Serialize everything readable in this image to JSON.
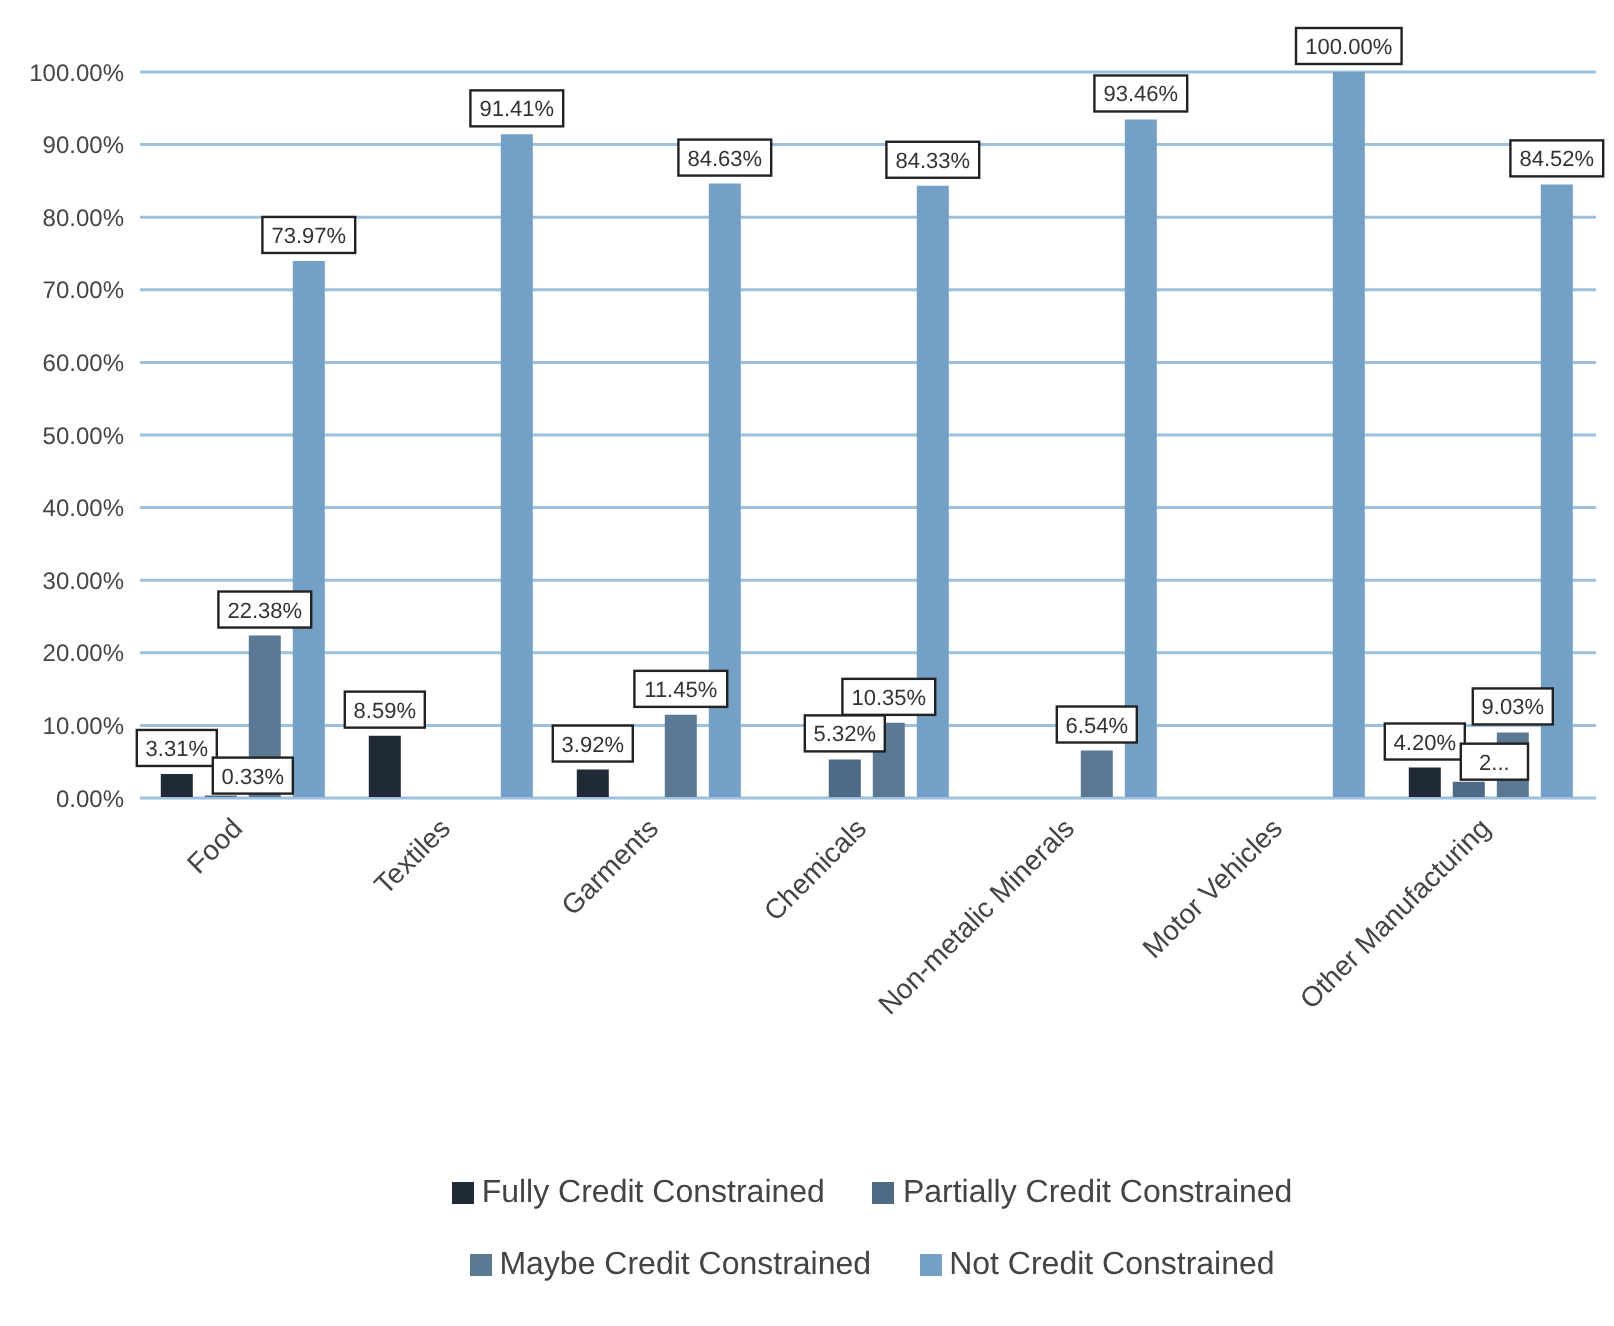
{
  "chart_data": {
    "type": "bar",
    "categories": [
      "Food",
      "Textiles",
      "Garments",
      "Chemicals",
      "Non-metalic Minerals",
      "Motor Vehicles",
      "Other Manufacturing"
    ],
    "series": [
      {
        "name": "Fully Credit Constrained",
        "color": "#1f2a36",
        "values": [
          3.31,
          8.59,
          3.92,
          null,
          null,
          null,
          4.2
        ],
        "value_labels": [
          "3.31%",
          "8.59%",
          "3.92%",
          null,
          null,
          null,
          "4.20%"
        ]
      },
      {
        "name": "Partially Credit Constrained",
        "color": "#4f6a85",
        "values": [
          0.33,
          null,
          null,
          5.32,
          null,
          null,
          2.25
        ],
        "value_labels": [
          "0.33%",
          null,
          null,
          "5.32%",
          null,
          null,
          "2..."
        ]
      },
      {
        "name": "Maybe Credit Constrained",
        "color": "#5b7995",
        "values": [
          22.38,
          null,
          11.45,
          10.35,
          6.54,
          null,
          9.03
        ],
        "value_labels": [
          "22.38%",
          null,
          "11.45%",
          "10.35%",
          "6.54%",
          null,
          "9.03%"
        ]
      },
      {
        "name": "Not Credit Constrained",
        "color": "#73a0c4",
        "values": [
          73.97,
          91.41,
          84.63,
          84.33,
          93.46,
          100,
          84.52
        ],
        "value_labels": [
          "73.97%",
          "91.41%",
          "84.63%",
          "84.33%",
          "93.46%",
          "100.00%",
          "84.52%"
        ]
      }
    ],
    "ylim": [
      0,
      100
    ],
    "yticks": [
      {
        "value": 0,
        "label": "0.00%"
      },
      {
        "value": 10,
        "label": "10.00%"
      },
      {
        "value": 20,
        "label": "20.00%"
      },
      {
        "value": 30,
        "label": "30.00%"
      },
      {
        "value": 40,
        "label": "40.00%"
      },
      {
        "value": 50,
        "label": "50.00%"
      },
      {
        "value": 60,
        "label": "60.00%"
      },
      {
        "value": 70,
        "label": "70.00%"
      },
      {
        "value": 80,
        "label": "80.00%"
      },
      {
        "value": 90,
        "label": "90.00%"
      },
      {
        "value": 100,
        "label": "100.00%"
      }
    ],
    "grid": "y",
    "legend": "bottom"
  }
}
